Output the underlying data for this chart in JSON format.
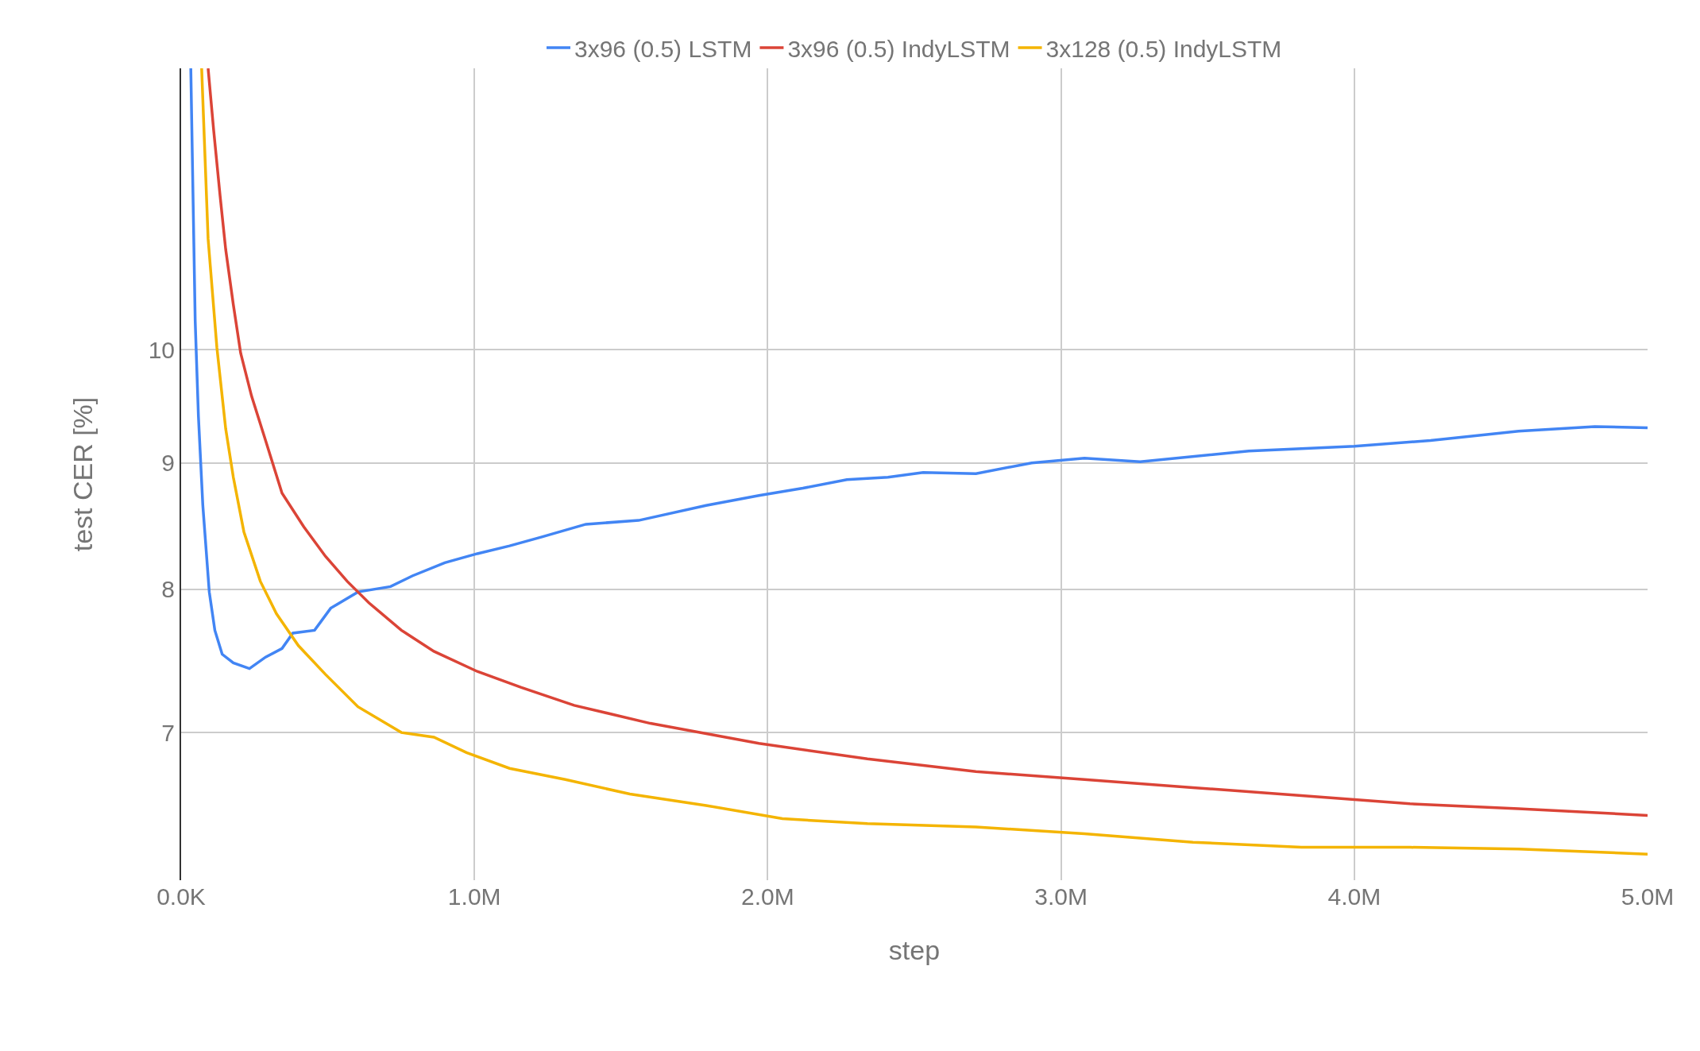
{
  "chart_data": {
    "type": "line",
    "xlabel": "step",
    "ylabel": "test CER [%]",
    "log": "y",
    "grid": true,
    "legend": "top",
    "marker": "none",
    "line_style": "solid",
    "xlim": [
      0,
      5000000
    ],
    "xticks": [
      {
        "value": 0,
        "label": "0.0K"
      },
      {
        "value": 1000000,
        "label": "1.0M"
      },
      {
        "value": 2000000,
        "label": "2.0M"
      },
      {
        "value": 3000000,
        "label": "3.0M"
      },
      {
        "value": 4000000,
        "label": "4.0M"
      },
      {
        "value": 5000000,
        "label": "5.0M"
      }
    ],
    "ylim": [
      6.1,
      13
    ],
    "yticks": [
      7,
      8,
      9,
      10
    ],
    "series": [
      {
        "name": "3x96 (0.5) LSTM",
        "color": "#4285f4",
        "x": [
          33000,
          48000,
          59000,
          74000,
          96000,
          115000,
          140000,
          178000,
          233000,
          288000,
          344000,
          381000,
          455000,
          510000,
          603000,
          714000,
          788000,
          899000,
          1010000,
          1120000,
          1230000,
          1380000,
          1560000,
          1790000,
          1970000,
          2120000,
          2270000,
          2410000,
          2530000,
          2710000,
          2900000,
          3080000,
          3270000,
          3640000,
          4000000,
          4260000,
          4560000,
          4820000,
          5000000
        ],
        "values": [
          13.0,
          10.27,
          9.4,
          8.65,
          7.98,
          7.7,
          7.53,
          7.47,
          7.43,
          7.51,
          7.57,
          7.68,
          7.7,
          7.86,
          7.98,
          8.02,
          8.1,
          8.2,
          8.27,
          8.33,
          8.4,
          8.5,
          8.53,
          8.65,
          8.73,
          8.79,
          8.86,
          8.88,
          8.92,
          8.91,
          9.0,
          9.04,
          9.01,
          9.1,
          9.14,
          9.19,
          9.27,
          9.31,
          9.3
        ]
      },
      {
        "name": "3x96 (0.5) IndyLSTM",
        "color": "#db4437",
        "x": [
          92000,
          111000,
          133000,
          152000,
          178000,
          203000,
          240000,
          288000,
          344000,
          418000,
          492000,
          566000,
          640000,
          751000,
          862000,
          1010000,
          1160000,
          1340000,
          1600000,
          1970000,
          2340000,
          2710000,
          3080000,
          3450000,
          3820000,
          4190000,
          4560000,
          5000000
        ],
        "values": [
          13.0,
          12.27,
          11.54,
          10.98,
          10.43,
          9.97,
          9.58,
          9.19,
          8.75,
          8.48,
          8.25,
          8.06,
          7.9,
          7.7,
          7.55,
          7.41,
          7.3,
          7.18,
          7.06,
          6.93,
          6.83,
          6.75,
          6.7,
          6.65,
          6.6,
          6.55,
          6.52,
          6.48
        ]
      },
      {
        "name": "3x128 (0.5) IndyLSTM",
        "color": "#f4b400",
        "x": [
          70000,
          92000,
          122000,
          152000,
          178000,
          214000,
          270000,
          325000,
          400000,
          492000,
          603000,
          751000,
          862000,
          973000,
          1120000,
          1310000,
          1530000,
          1790000,
          2050000,
          2340000,
          2710000,
          3080000,
          3450000,
          3820000,
          4190000,
          4560000,
          5000000
        ],
        "values": [
          13.0,
          11.09,
          10.02,
          9.29,
          8.88,
          8.44,
          8.06,
          7.82,
          7.59,
          7.39,
          7.17,
          7.0,
          6.97,
          6.87,
          6.77,
          6.7,
          6.61,
          6.54,
          6.46,
          6.43,
          6.41,
          6.37,
          6.32,
          6.29,
          6.29,
          6.28,
          6.25
        ]
      }
    ]
  }
}
